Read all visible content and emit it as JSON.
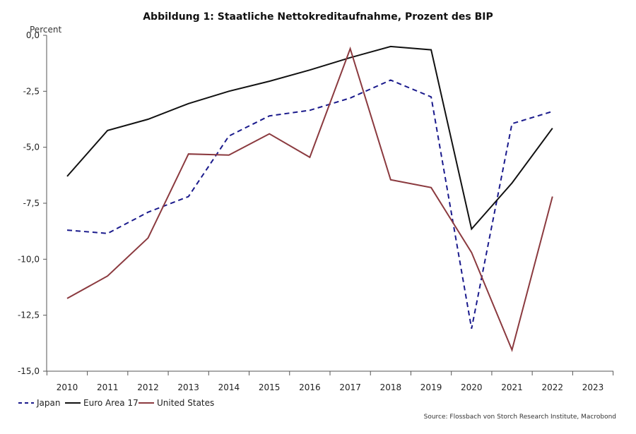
{
  "chart_data": {
    "type": "line",
    "title": "Abbildung 1: Staatliche Nettokreditaufnahme, Prozent des BIP",
    "ylabel": "Percent",
    "xlabel": "",
    "x": [
      2010,
      2011,
      2012,
      2013,
      2014,
      2015,
      2016,
      2017,
      2018,
      2019,
      2020,
      2021,
      2022,
      2023
    ],
    "x_tick_labels": [
      "2010",
      "2011",
      "2012",
      "2013",
      "2014",
      "2015",
      "2016",
      "2017",
      "2018",
      "2019",
      "2020",
      "2021",
      "2022",
      "2023"
    ],
    "ylim": [
      -15,
      0
    ],
    "y_ticks": [
      0,
      -2.5,
      -5,
      -7.5,
      -10,
      -12.5,
      -15
    ],
    "y_tick_labels": [
      "0,0",
      "-2,5",
      "-5,0",
      "-7,5",
      "-10,0",
      "-12,5",
      "-15,0"
    ],
    "grid": false,
    "legend_position": "bottom-left",
    "series": [
      {
        "name": "Japan",
        "color": "#1a1a8c",
        "style": "dashed",
        "x": [
          2010,
          2011,
          2012,
          2013,
          2014,
          2015,
          2016,
          2017,
          2018,
          2019,
          2020,
          2021,
          2022
        ],
        "values": [
          -8.7,
          -8.85,
          -7.9,
          -7.2,
          -4.5,
          -3.6,
          -3.35,
          -2.8,
          -2.0,
          -2.75,
          -13.1,
          -3.95,
          -3.4
        ]
      },
      {
        "name": "Euro Area 17",
        "color": "#111111",
        "style": "solid",
        "x": [
          2010,
          2011,
          2012,
          2013,
          2014,
          2015,
          2016,
          2017,
          2018,
          2019,
          2020,
          2021,
          2022
        ],
        "values": [
          -6.3,
          -4.25,
          -3.75,
          -3.05,
          -2.5,
          -2.05,
          -1.55,
          -1.0,
          -0.5,
          -0.65,
          -8.65,
          -6.6,
          -4.15
        ]
      },
      {
        "name": "United States",
        "color": "#8b3a3f",
        "style": "solid",
        "x": [
          2010,
          2011,
          2012,
          2013,
          2014,
          2015,
          2016,
          2017,
          2018,
          2019,
          2020,
          2021,
          2022
        ],
        "values": [
          -11.75,
          -10.75,
          -9.05,
          -5.3,
          -5.35,
          -4.4,
          -5.45,
          -0.6,
          -6.45,
          -6.8,
          -9.7,
          -14.05,
          -7.2
        ]
      }
    ],
    "source": "Source: Flossbach von Storch Research Institute, Macrobond"
  }
}
